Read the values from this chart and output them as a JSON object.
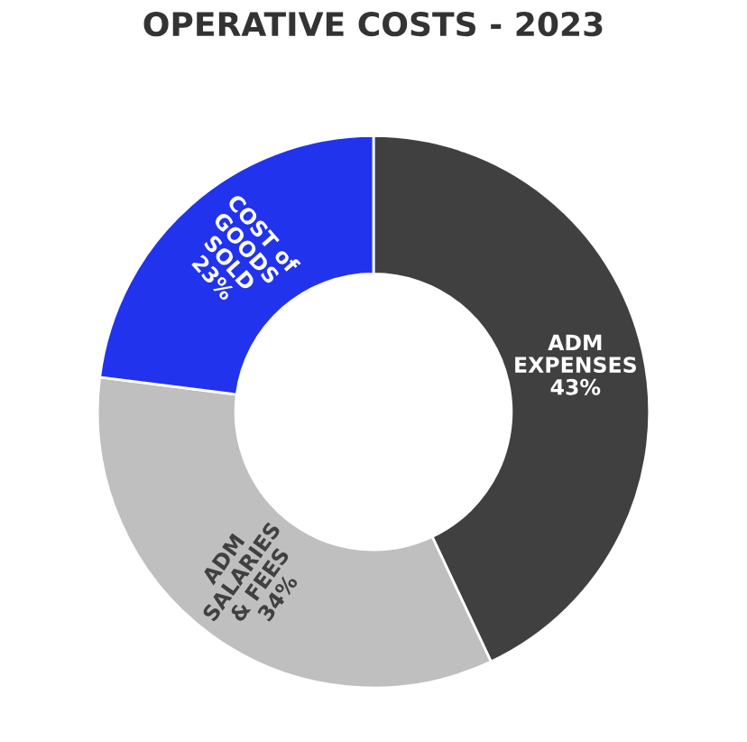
{
  "chart_data": {
    "type": "donut",
    "title": "OPERATIVE COSTS - 2023",
    "categories": [
      "ADM EXPENSES",
      "ADM SALARIES & FEES",
      "COST of GOODS SOLD"
    ],
    "values": [
      43,
      34,
      23
    ],
    "value_labels": [
      "43%",
      "34%",
      "23%"
    ],
    "colors": [
      "#404040",
      "#bfbfbf",
      "#2233ee"
    ],
    "legend": false
  }
}
